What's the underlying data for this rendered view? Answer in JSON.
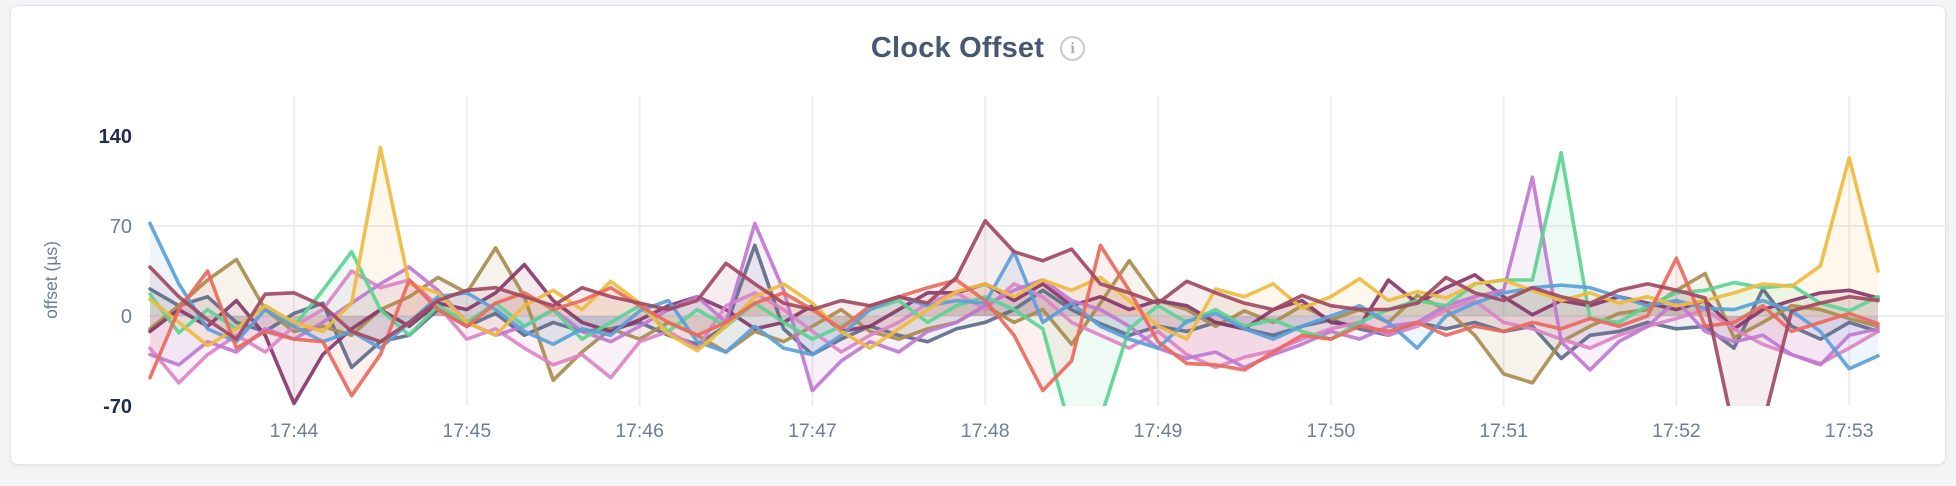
{
  "page": {
    "title": "Clock Offset",
    "info_icon": "i"
  },
  "chart_data": {
    "type": "line",
    "title": "Clock Offset",
    "xlabel": "",
    "ylabel": "offset (µs)",
    "ylim": [
      -70,
      140
    ],
    "clip_below": -70,
    "legend": "none",
    "grid": "vertical lines at each minute tick; horizontal lines at 0 and 70",
    "colors": {
      "axis_strong": "#1e2d4d",
      "axis_muted": "#6f7d98",
      "gridline": "#ededef",
      "title": "#475872"
    },
    "y_ticks": [
      {
        "value": 140,
        "label": "140",
        "strong": true,
        "grid": false
      },
      {
        "value": 70,
        "label": "70",
        "strong": false,
        "grid": true
      },
      {
        "value": 0,
        "label": "0",
        "strong": false,
        "grid": true
      },
      {
        "value": -70,
        "label": "-70",
        "strong": true,
        "grid": false
      }
    ],
    "x_ticks": [
      {
        "index": 5,
        "label": "17:44"
      },
      {
        "index": 11,
        "label": "17:45"
      },
      {
        "index": 17,
        "label": "17:46"
      },
      {
        "index": 23,
        "label": "17:47"
      },
      {
        "index": 29,
        "label": "17:48"
      },
      {
        "index": 35,
        "label": "17:49"
      },
      {
        "index": 41,
        "label": "17:50"
      },
      {
        "index": 47,
        "label": "17:51"
      },
      {
        "index": 53,
        "label": "17:52"
      },
      {
        "index": 59,
        "label": "17:53"
      }
    ],
    "points_per_series": 61,
    "series": [
      {
        "name": "slate",
        "color": "#5F6C8A",
        "values": [
          21,
          8,
          15,
          -5,
          -12,
          2,
          10,
          -40,
          -20,
          -15,
          5,
          -8,
          2,
          -15,
          -5,
          -12,
          -10,
          -5,
          -15,
          -22,
          -8,
          55,
          -10,
          -30,
          -18,
          -8,
          -15,
          -20,
          -10,
          -5,
          5,
          20,
          5,
          -6,
          -15,
          -8,
          -12,
          -5,
          -10,
          -15,
          -8,
          -3,
          -10,
          -15,
          -5,
          -10,
          -5,
          -12,
          -8,
          -33,
          -15,
          -12,
          -5,
          -10,
          -8,
          -25,
          21,
          -8,
          -18,
          -5,
          -12
        ]
      },
      {
        "name": "olive",
        "color": "#A98C4E",
        "values": [
          -10,
          8,
          28,
          44,
          5,
          -12,
          -8,
          -15,
          5,
          15,
          30,
          18,
          53,
          15,
          -50,
          -28,
          -10,
          -18,
          -5,
          -15,
          -28,
          -12,
          -20,
          -8,
          5,
          -12,
          -18,
          -10,
          -5,
          8,
          -5,
          5,
          -22,
          10,
          43,
          12,
          5,
          -8,
          4,
          -5,
          8,
          -3,
          5,
          -5,
          16,
          5,
          -15,
          -45,
          -52,
          -20,
          -8,
          2,
          5,
          20,
          33,
          -17,
          -5,
          8,
          5,
          -2,
          -8
        ]
      },
      {
        "name": "plum",
        "color": "#87376B",
        "values": [
          -12,
          5,
          -8,
          12,
          -15,
          -68,
          -30,
          -10,
          5,
          -8,
          10,
          5,
          18,
          40,
          12,
          -5,
          -12,
          -3,
          8,
          15,
          5,
          -10,
          -5,
          8,
          -12,
          -8,
          5,
          18,
          18,
          25,
          12,
          25,
          8,
          15,
          5,
          12,
          8,
          -5,
          -10,
          5,
          12,
          -5,
          -8,
          28,
          10,
          22,
          32,
          15,
          1,
          12,
          8,
          15,
          10,
          5,
          12,
          -10,
          5,
          12,
          18,
          20,
          14
        ]
      },
      {
        "name": "pink",
        "color": "#DC84C6",
        "values": [
          -25,
          -52,
          -30,
          -15,
          -28,
          -8,
          5,
          35,
          22,
          28,
          8,
          -18,
          -10,
          -25,
          -38,
          -30,
          -48,
          -20,
          -12,
          -25,
          8,
          18,
          5,
          -12,
          -28,
          -15,
          -5,
          10,
          18,
          5,
          25,
          15,
          -5,
          -15,
          -25,
          -12,
          -30,
          -40,
          -32,
          -27,
          -18,
          -10,
          -5,
          -15,
          -8,
          5,
          12,
          -5,
          -10,
          -18,
          -25,
          -15,
          -8,
          -2,
          5,
          -10,
          -22,
          -30,
          -37,
          -25,
          -12
        ]
      },
      {
        "name": "violet",
        "color": "#BF7AD1",
        "values": [
          -30,
          -38,
          -20,
          -28,
          -10,
          -18,
          -5,
          10,
          25,
          38,
          20,
          -5,
          -15,
          -8,
          5,
          -12,
          -20,
          -8,
          5,
          15,
          -5,
          72,
          20,
          -58,
          -35,
          -20,
          -28,
          -12,
          -5,
          8,
          20,
          28,
          12,
          5,
          -8,
          -25,
          -33,
          -28,
          -40,
          -30,
          -22,
          -12,
          -18,
          -8,
          -5,
          8,
          15,
          20,
          108,
          -20,
          -42,
          -20,
          -8,
          12,
          -12,
          -20,
          -15,
          -30,
          -38,
          -15,
          -10
        ]
      },
      {
        "name": "green",
        "color": "#5CD392",
        "values": [
          17,
          -13,
          5,
          -10,
          8,
          -8,
          20,
          50,
          5,
          -15,
          8,
          -5,
          10,
          -8,
          5,
          -18,
          -5,
          8,
          -12,
          5,
          -8,
          10,
          -5,
          -18,
          -8,
          5,
          12,
          -5,
          8,
          15,
          5,
          -10,
          -92,
          -80,
          -10,
          8,
          -5,
          5,
          -8,
          -3,
          -12,
          -18,
          -5,
          5,
          12,
          8,
          25,
          28,
          28,
          127,
          -2,
          -5,
          8,
          18,
          20,
          26,
          22,
          24,
          10,
          4,
          15
        ]
      },
      {
        "name": "blue",
        "color": "#5C9FD8",
        "values": [
          72,
          25,
          -10,
          -20,
          5,
          -8,
          -20,
          -12,
          -25,
          -5,
          15,
          18,
          5,
          -12,
          -22,
          -10,
          -15,
          4,
          12,
          -20,
          -28,
          -8,
          -25,
          -30,
          -15,
          5,
          15,
          8,
          12,
          10,
          50,
          -5,
          10,
          -8,
          -18,
          -25,
          -4,
          2,
          -10,
          -18,
          -8,
          0,
          8,
          -5,
          -25,
          0,
          10,
          18,
          22,
          24,
          22,
          15,
          8,
          12,
          6,
          5,
          12,
          4,
          -12,
          -41,
          -31
        ]
      },
      {
        "name": "yellow",
        "color": "#EEBB3F",
        "values": [
          13,
          -5,
          -23,
          -10,
          8,
          -5,
          -12,
          10,
          131,
          25,
          18,
          -5,
          -15,
          8,
          20,
          5,
          27,
          10,
          -14,
          -27,
          -8,
          15,
          25,
          10,
          -12,
          -25,
          -10,
          5,
          19,
          25,
          15,
          28,
          20,
          30,
          12,
          -8,
          -18,
          21,
          15,
          25,
          6,
          15,
          29,
          12,
          19,
          14,
          25,
          28,
          20,
          12,
          18,
          10,
          15,
          8,
          12,
          18,
          25,
          23,
          39,
          123,
          35
        ]
      },
      {
        "name": "red",
        "color": "#E96A5E",
        "values": [
          -48,
          5,
          35,
          -25,
          -12,
          -18,
          -20,
          -62,
          -30,
          28,
          5,
          -8,
          10,
          18,
          5,
          12,
          22,
          8,
          -5,
          -15,
          -5,
          10,
          18,
          5,
          -10,
          8,
          15,
          22,
          28,
          12,
          -15,
          -58,
          -35,
          55,
          20,
          -20,
          -37,
          -38,
          -42,
          -28,
          -15,
          -18,
          -8,
          -12,
          -5,
          -15,
          -8,
          -12,
          -5,
          -10,
          -2,
          -8,
          0,
          45,
          -8,
          -5,
          8,
          -12,
          -5,
          2,
          -6
        ]
      },
      {
        "name": "maroon",
        "color": "#A14A62",
        "values": [
          38,
          15,
          -3,
          -18,
          17,
          18,
          8,
          -12,
          -20,
          -5,
          12,
          20,
          22,
          15,
          8,
          22,
          15,
          10,
          5,
          12,
          41,
          25,
          10,
          5,
          12,
          8,
          15,
          10,
          30,
          74,
          50,
          43,
          52,
          25,
          18,
          10,
          27,
          18,
          10,
          5,
          16,
          8,
          5,
          5,
          10,
          30,
          18,
          12,
          22,
          15,
          10,
          20,
          25,
          20,
          14,
          -90,
          -85,
          4,
          10,
          15,
          12
        ]
      }
    ]
  }
}
